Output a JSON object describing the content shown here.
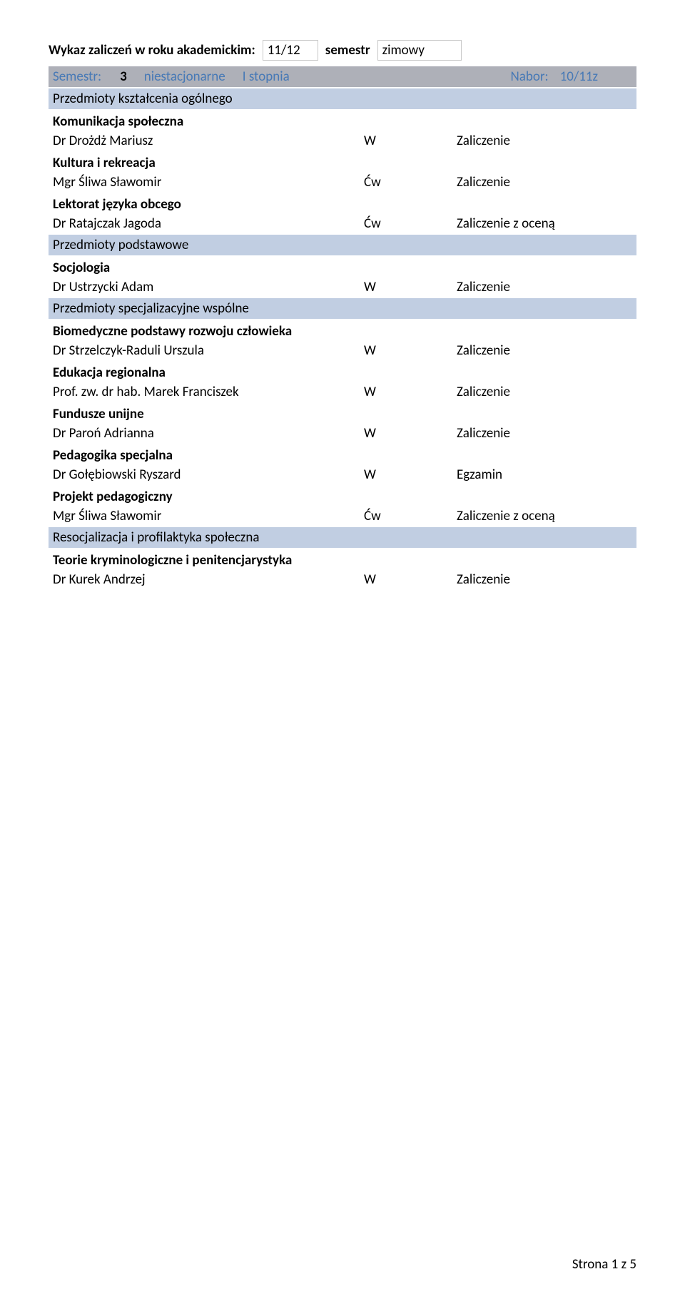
{
  "header": {
    "title_label": "Wykaz zaliczeń w roku akademickim:",
    "year": "11/12",
    "semester_label": "semestr",
    "semester_value": "zimowy"
  },
  "semester_bar": {
    "label": "Semestr:",
    "number": "3",
    "mode": "niestacjonarne",
    "degree": "I stopnia",
    "nabor_label": "Nabor:",
    "nabor_value": "10/11z"
  },
  "sections": [
    {
      "title": "Przedmioty kształcenia ogólnego",
      "subjects": [
        {
          "title": "Komunikacja społeczna",
          "person": "Dr Drożdż Mariusz",
          "type": "W",
          "grade": "Zaliczenie"
        },
        {
          "title": "Kultura i rekreacja",
          "person": "Mgr Śliwa Sławomir",
          "type": "Ćw",
          "grade": "Zaliczenie"
        },
        {
          "title": "Lektorat języka obcego",
          "person": "Dr Ratajczak Jagoda",
          "type": "Ćw",
          "grade": "Zaliczenie z oceną"
        }
      ]
    },
    {
      "title": "Przedmioty podstawowe",
      "subjects": [
        {
          "title": "Socjologia",
          "person": "Dr Ustrzycki Adam",
          "type": "W",
          "grade": "Zaliczenie"
        }
      ]
    },
    {
      "title": "Przedmioty specjalizacyjne wspólne",
      "subjects": [
        {
          "title": "Biomedyczne podstawy rozwoju człowieka",
          "person": "Dr Strzelczyk-Raduli Urszula",
          "type": "W",
          "grade": "Zaliczenie"
        },
        {
          "title": "Edukacja regionalna",
          "person": "Prof. zw. dr hab. Marek Franciszek",
          "type": "W",
          "grade": "Zaliczenie"
        },
        {
          "title": "Fundusze unijne",
          "person": "Dr Paroń Adrianna",
          "type": "W",
          "grade": "Zaliczenie"
        },
        {
          "title": "Pedagogika specjalna",
          "person": "Dr Gołębiowski Ryszard",
          "type": "W",
          "grade": "Egzamin"
        },
        {
          "title": "Projekt pedagogiczny",
          "person": "Mgr Śliwa Sławomir",
          "type": "Ćw",
          "grade": "Zaliczenie z oceną"
        }
      ]
    },
    {
      "title": "Resocjalizacja i profilaktyka społeczna",
      "subjects": [
        {
          "title": "Teorie kryminologiczne i penitencjarystyka",
          "person": "Dr Kurek Andrzej",
          "type": "W",
          "grade": "Zaliczenie"
        }
      ]
    }
  ],
  "footer": "Strona 1 z 5"
}
